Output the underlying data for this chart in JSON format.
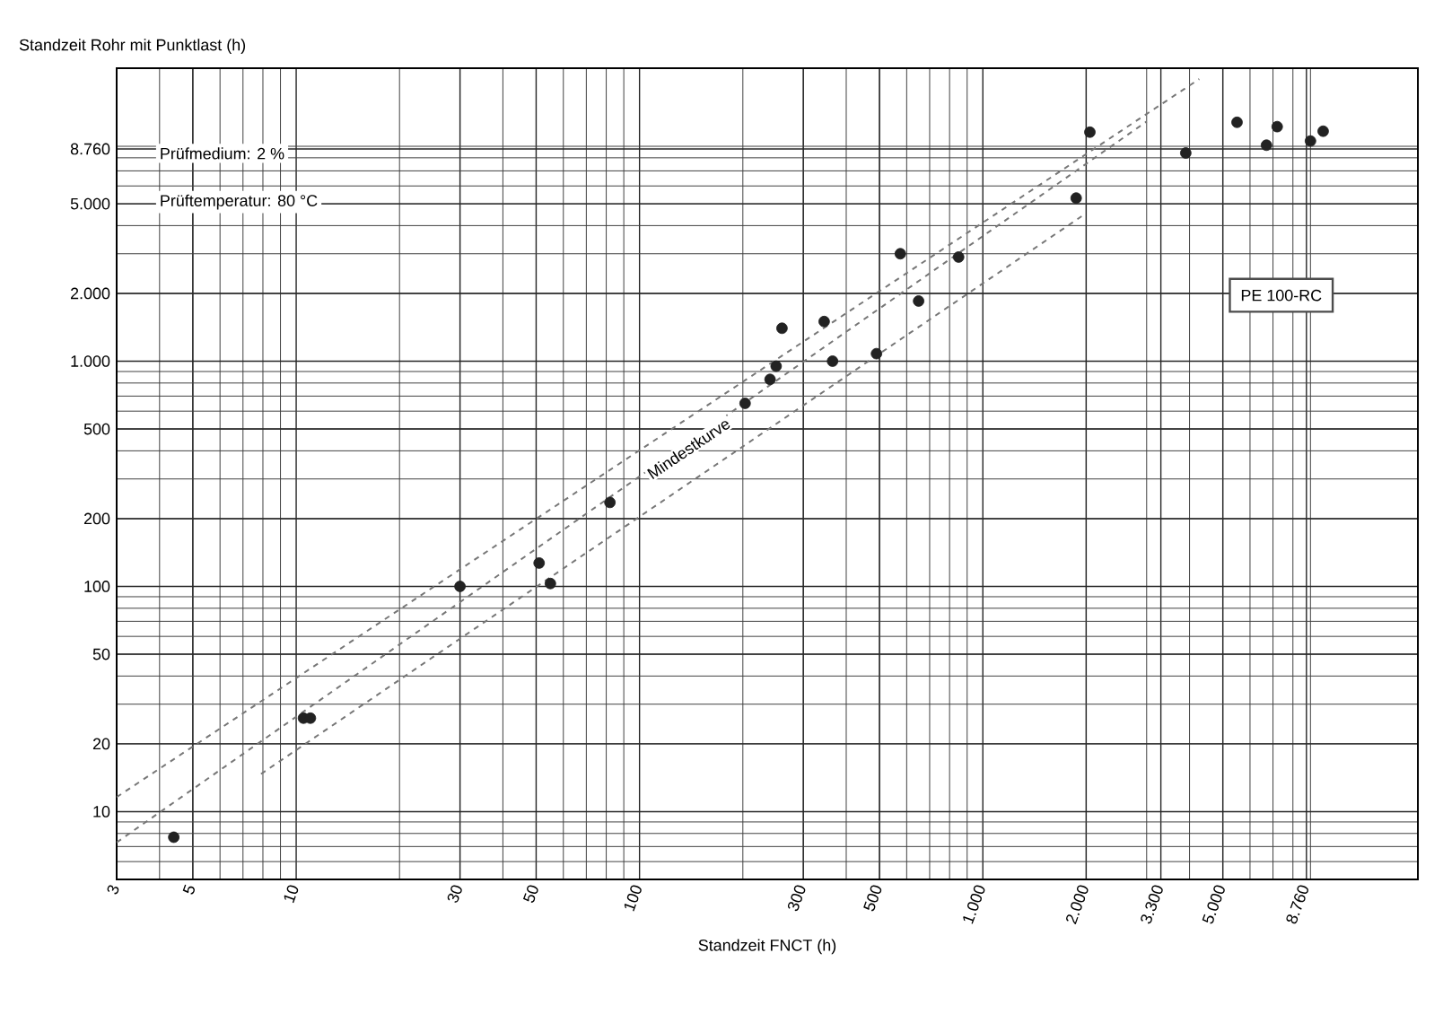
{
  "chart_data": {
    "type": "scatter",
    "xlabel": "Standzeit FNCT (h)",
    "ylabel": "Standzeit Rohr mit Punktlast (h)",
    "log": "xy",
    "grid": true,
    "xlim": [
      3,
      18500
    ],
    "ylim": [
      5,
      20000
    ],
    "xticks": [
      3,
      5,
      10,
      30,
      50,
      100,
      300,
      500,
      {
        "value": 1000,
        "label": "1.000"
      },
      {
        "value": 2000,
        "label": "2.000"
      },
      {
        "value": 3300,
        "label": "3.300"
      },
      {
        "value": 5000,
        "label": "5.000"
      },
      {
        "value": 8760,
        "label": "8.760"
      }
    ],
    "yticks": [
      10,
      20,
      50,
      100,
      200,
      500,
      {
        "value": 1000,
        "label": "1.000"
      },
      {
        "value": 2000,
        "label": "2.000"
      },
      {
        "value": 5000,
        "label": "5.000"
      },
      {
        "value": 8760,
        "label": "8.760"
      }
    ],
    "series": [
      {
        "marker": "circle",
        "color": "#222222",
        "x": [
          4.4,
          10.5,
          11,
          30,
          51,
          55,
          82,
          203,
          240,
          250,
          260,
          345,
          365,
          490,
          575,
          650,
          850,
          1870,
          2050,
          3900,
          5500,
          6700,
          7200,
          9000,
          9800
        ],
        "values": [
          7.7,
          26,
          26,
          100,
          127,
          103,
          236,
          650,
          830,
          950,
          1400,
          1500,
          1000,
          1080,
          3000,
          1850,
          2900,
          5300,
          10400,
          8400,
          11500,
          9100,
          11000,
          9500,
          10500
        ]
      },
      {
        "type": "line",
        "marker": "none",
        "line_style": "dashed",
        "color": "#777777",
        "x": [
          3,
          4270
        ],
        "values": [
          11.6,
          17900
        ]
      },
      {
        "type": "line",
        "marker": "none",
        "line_style": "dashed",
        "color": "#777777",
        "x": [
          3,
          3000
        ],
        "values": [
          7.3,
          11600
        ]
      },
      {
        "type": "line",
        "marker": "none",
        "line_style": "dashed",
        "color": "#777777",
        "x": [
          7.9,
          1940
        ],
        "values": [
          14.7,
          4400
        ]
      }
    ],
    "annotations": [
      "Prüfmedium: 2 %",
      "Prüftemperatur: 80 °C",
      "PE 100-RC",
      {
        "text": "Mindestkurve",
        "x": 139,
        "y": 410
      }
    ]
  }
}
